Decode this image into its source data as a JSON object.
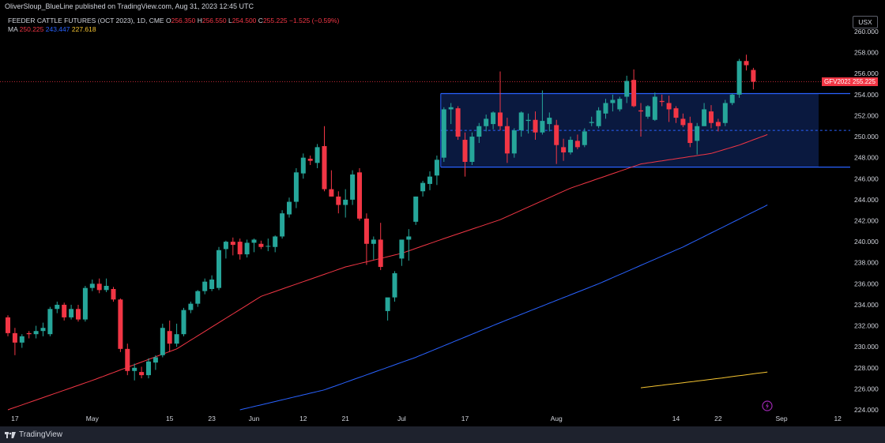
{
  "header": {
    "published": "OliverSloup_BlueLine published on TradingView.com, Aug 31, 2023 12:45 UTC"
  },
  "legend": {
    "symbol": "FEEDER CATTLE FUTURES (OCT 2023), 1D, CME",
    "ohlc": {
      "o_label": "O",
      "o": "256.350",
      "h_label": "H",
      "h": "256.550",
      "l_label": "L",
      "l": "254.500",
      "c_label": "C",
      "c": "255.225",
      "change": "−1.525 (−0.59%)"
    },
    "ma_label": "MA",
    "ma_values": [
      "250.225",
      "243.447",
      "227.618"
    ]
  },
  "currency": "USX",
  "price_tag": {
    "symbol": "GFV2023",
    "value": "255.225"
  },
  "footer": {
    "brand": "TradingView"
  },
  "colors": {
    "up": "#26a69a",
    "down": "#f23645",
    "ma1": "#f23645",
    "ma2": "#2962ff",
    "ma3": "#f5c431",
    "box": "#2962ff",
    "box_fill": "#0c1d4a"
  },
  "chart_data": {
    "type": "candlestick",
    "y_ticks": [
      "260.000",
      "258.000",
      "256.000",
      "254.000",
      "252.000",
      "250.000",
      "248.000",
      "246.000",
      "244.000",
      "242.000",
      "240.000",
      "238.000",
      "236.000",
      "234.000",
      "232.000",
      "230.000",
      "228.000",
      "226.000",
      "224.000"
    ],
    "ylim": [
      224,
      260
    ],
    "x_tick_labels": [
      "17",
      "May",
      "15",
      "23",
      "Jun",
      "12",
      "21",
      "Jul",
      "17",
      "Aug",
      "14",
      "22",
      "Sep",
      "12"
    ],
    "last_price": 255.225,
    "range_box": {
      "top": 254.1,
      "bottom": 247.1,
      "mid": 250.6
    },
    "candles": [
      [
        232.8,
        233.0,
        231.0,
        231.3
      ],
      [
        231.3,
        231.8,
        229.2,
        230.4
      ],
      [
        230.4,
        231.2,
        229.9,
        231.0
      ],
      [
        231.3,
        231.5,
        230.8,
        231.2
      ],
      [
        231.2,
        232.0,
        230.8,
        231.5
      ],
      [
        231.5,
        232.3,
        231.0,
        231.8
      ],
      [
        231.2,
        233.8,
        231.0,
        233.6
      ],
      [
        233.6,
        234.3,
        233.2,
        234.0
      ],
      [
        234.0,
        234.2,
        232.5,
        232.8
      ],
      [
        232.8,
        234.0,
        232.6,
        233.6
      ],
      [
        233.6,
        234.0,
        232.4,
        232.6
      ],
      [
        232.6,
        235.8,
        232.4,
        235.6
      ],
      [
        235.6,
        236.4,
        235.3,
        236.0
      ],
      [
        236.0,
        236.5,
        235.1,
        235.4
      ],
      [
        235.4,
        236.5,
        235.2,
        235.8
      ],
      [
        235.5,
        235.7,
        234.3,
        234.5
      ],
      [
        234.5,
        234.6,
        229.5,
        229.8
      ],
      [
        229.8,
        230.3,
        227.3,
        227.7
      ],
      [
        227.7,
        228.4,
        226.8,
        228.0
      ],
      [
        227.6,
        228.1,
        227.0,
        227.3
      ],
      [
        227.3,
        228.9,
        227.0,
        228.6
      ],
      [
        228.5,
        229.2,
        227.8,
        229.0
      ],
      [
        229.2,
        232.2,
        229.0,
        231.8
      ],
      [
        231.5,
        232.5,
        229.5,
        230.3
      ],
      [
        230.3,
        232.2,
        230.0,
        231.2
      ],
      [
        231.2,
        233.7,
        231.0,
        233.5
      ],
      [
        233.5,
        234.3,
        233.2,
        234.1
      ],
      [
        234.1,
        235.4,
        233.8,
        235.3
      ],
      [
        235.3,
        236.5,
        235.0,
        236.2
      ],
      [
        235.5,
        236.8,
        235.3,
        236.4
      ],
      [
        235.6,
        239.5,
        235.4,
        239.2
      ],
      [
        239.3,
        240.1,
        238.4,
        240.0
      ],
      [
        240.0,
        240.4,
        238.7,
        239.7
      ],
      [
        240.0,
        240.3,
        238.3,
        238.8
      ],
      [
        238.8,
        240.2,
        238.5,
        239.9
      ],
      [
        239.9,
        240.3,
        239.0,
        240.2
      ],
      [
        239.8,
        240.1,
        239.3,
        239.5
      ],
      [
        239.6,
        240.3,
        239.1,
        239.6
      ],
      [
        239.5,
        240.6,
        239.0,
        240.5
      ],
      [
        240.5,
        243.0,
        240.3,
        242.7
      ],
      [
        242.6,
        244.2,
        242.3,
        243.8
      ],
      [
        243.8,
        247.0,
        243.2,
        246.6
      ],
      [
        246.5,
        248.4,
        246.0,
        248.0
      ],
      [
        247.9,
        248.2,
        247.3,
        247.7
      ],
      [
        247.5,
        249.3,
        247.0,
        249.0
      ],
      [
        249.1,
        251.0,
        244.8,
        245.0
      ],
      [
        245.0,
        246.8,
        244.3,
        244.3
      ],
      [
        244.3,
        244.8,
        242.7,
        243.5
      ],
      [
        243.5,
        245.0,
        242.3,
        244.0
      ],
      [
        244.0,
        246.8,
        243.5,
        246.4
      ],
      [
        246.6,
        247.0,
        242.0,
        242.2
      ],
      [
        242.2,
        242.7,
        237.8,
        239.8
      ],
      [
        239.8,
        240.5,
        238.3,
        240.2
      ],
      [
        240.2,
        241.8,
        237.3,
        237.6
      ],
      [
        233.4,
        234.6,
        232.5,
        234.7
      ],
      [
        234.7,
        237.2,
        234.3,
        237.0
      ],
      [
        238.4,
        240.2,
        237.7,
        240.2
      ],
      [
        240.2,
        241.2,
        238.2,
        240.5
      ],
      [
        241.9,
        244.3,
        241.6,
        244.3
      ],
      [
        244.8,
        245.8,
        244.3,
        245.6
      ],
      [
        245.5,
        246.7,
        244.9,
        246.2
      ],
      [
        246.3,
        248.2,
        245.4,
        247.8
      ],
      [
        248.0,
        252.8,
        247.6,
        252.6
      ],
      [
        252.6,
        253.2,
        251.2,
        252.8
      ],
      [
        252.7,
        252.9,
        249.7,
        250.0
      ],
      [
        249.7,
        250.4,
        246.2,
        247.6
      ],
      [
        247.6,
        250.4,
        247.3,
        250.0
      ],
      [
        250.0,
        251.3,
        249.4,
        251.0
      ],
      [
        251.0,
        252.1,
        250.5,
        251.7
      ],
      [
        251.2,
        252.4,
        250.7,
        252.3
      ],
      [
        252.3,
        256.2,
        250.6,
        251.0
      ],
      [
        251.0,
        251.8,
        247.5,
        248.4
      ],
      [
        248.4,
        250.8,
        248.0,
        250.6
      ],
      [
        250.6,
        252.4,
        250.0,
        252.3
      ],
      [
        251.5,
        252.2,
        250.3,
        251.6
      ],
      [
        251.6,
        252.4,
        249.7,
        250.4
      ],
      [
        250.4,
        254.4,
        250.2,
        251.5
      ],
      [
        251.2,
        252.3,
        250.5,
        251.8
      ],
      [
        251.1,
        251.6,
        247.4,
        249.2
      ],
      [
        249.0,
        249.8,
        247.7,
        248.5
      ],
      [
        248.5,
        250.0,
        248.3,
        249.7
      ],
      [
        249.6,
        250.2,
        248.8,
        249.0
      ],
      [
        249.2,
        250.8,
        249.0,
        250.5
      ],
      [
        251.3,
        251.9,
        251.0,
        251.4
      ],
      [
        251.0,
        252.8,
        250.8,
        252.5
      ],
      [
        252.2,
        253.6,
        251.7,
        253.2
      ],
      [
        253.2,
        254.0,
        252.4,
        253.5
      ],
      [
        252.6,
        253.8,
        252.4,
        253.6
      ],
      [
        253.8,
        255.8,
        253.2,
        255.3
      ],
      [
        255.4,
        256.4,
        252.8,
        252.9
      ],
      [
        252.5,
        253.2,
        250.0,
        252.4
      ],
      [
        251.9,
        253.0,
        251.7,
        252.9
      ],
      [
        251.6,
        254.2,
        251.5,
        253.8
      ],
      [
        253.4,
        254.0,
        252.9,
        253.3
      ],
      [
        253.2,
        253.9,
        251.4,
        252.6
      ],
      [
        252.7,
        252.9,
        251.3,
        251.8
      ],
      [
        251.7,
        252.2,
        250.9,
        251.1
      ],
      [
        251.3,
        251.9,
        249.0,
        249.4
      ],
      [
        249.6,
        251.3,
        248.3,
        251.0
      ],
      [
        251.0,
        253.2,
        251.0,
        252.6
      ],
      [
        252.4,
        253.0,
        250.8,
        251.3
      ],
      [
        251.4,
        251.7,
        250.5,
        251.0
      ],
      [
        251.3,
        253.5,
        251.0,
        253.2
      ],
      [
        253.2,
        254.1,
        253.0,
        254.0
      ],
      [
        254.0,
        257.4,
        253.7,
        257.2
      ],
      [
        257.2,
        257.8,
        256.3,
        256.8
      ],
      [
        256.35,
        256.55,
        254.5,
        255.225
      ]
    ],
    "ma_series": [
      {
        "name": "MA 250.225",
        "values_at": [
          [
            0,
            224.0
          ],
          [
            12,
            226.8
          ],
          [
            24,
            229.8
          ],
          [
            36,
            234.8
          ],
          [
            48,
            237.6
          ],
          [
            56,
            238.9
          ],
          [
            62,
            240.3
          ],
          [
            70,
            242.1
          ],
          [
            80,
            245.1
          ],
          [
            90,
            247.4
          ],
          [
            96,
            248.0
          ],
          [
            100,
            248.4
          ],
          [
            104,
            249.2
          ],
          [
            108,
            250.2
          ]
        ]
      },
      {
        "name": "MA 243.447",
        "values_at": [
          [
            33,
            224.0
          ],
          [
            45,
            225.9
          ],
          [
            58,
            229.0
          ],
          [
            70,
            232.3
          ],
          [
            84,
            236.0
          ],
          [
            96,
            239.5
          ],
          [
            108,
            243.5
          ]
        ]
      },
      {
        "name": "MA 227.618",
        "values_at": [
          [
            90,
            226.1
          ],
          [
            100,
            226.9
          ],
          [
            108,
            227.6
          ]
        ]
      }
    ]
  }
}
